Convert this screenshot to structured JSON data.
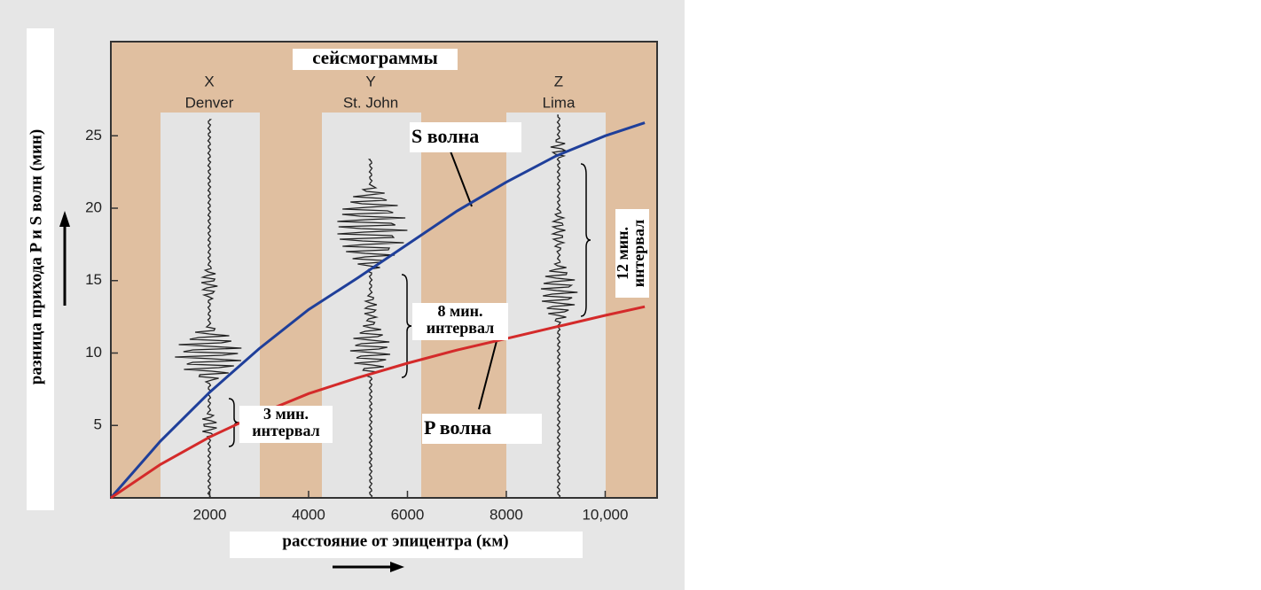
{
  "chart_data": {
    "type": "line",
    "title": "сейсмограммы",
    "x_label": "расстояние от эпицентра (км)",
    "y_label": "разница прихода P и S волн (мин)",
    "stations": [
      {
        "letter": "X",
        "name": "Denver"
      },
      {
        "letter": "Y",
        "name": "St. John"
      },
      {
        "letter": "Z",
        "name": "Lima"
      }
    ],
    "x": [
      0,
      1000,
      2000,
      3000,
      4000,
      5000,
      6000,
      7000,
      8000,
      9000,
      10000,
      10800
    ],
    "series": [
      {
        "name": "S волна",
        "color": "#1f3f9a",
        "values": [
          0,
          3.9,
          7.3,
          10.3,
          13.0,
          15.2,
          17.5,
          19.8,
          21.8,
          23.6,
          25.0,
          25.9
        ]
      },
      {
        "name": "P волна",
        "color": "#d42a2a",
        "values": [
          0,
          2.3,
          4.2,
          5.8,
          7.2,
          8.3,
          9.3,
          10.2,
          11.0,
          11.8,
          12.6,
          13.2
        ]
      }
    ],
    "annotations": [
      {
        "lines": [
          "3 мин.",
          "интервал"
        ]
      },
      {
        "lines": [
          "8 мин.",
          "интервал"
        ]
      },
      {
        "lines": [
          "12 мин.",
          "интервал"
        ]
      }
    ],
    "xlim": [
      0,
      11050
    ],
    "ylim": [
      0,
      31.5
    ],
    "xticks": [
      2000,
      4000,
      6000,
      8000,
      {
        "value": 10000,
        "label": "10,000"
      }
    ],
    "yticks": [
      5,
      10,
      15,
      20,
      25
    ]
  }
}
